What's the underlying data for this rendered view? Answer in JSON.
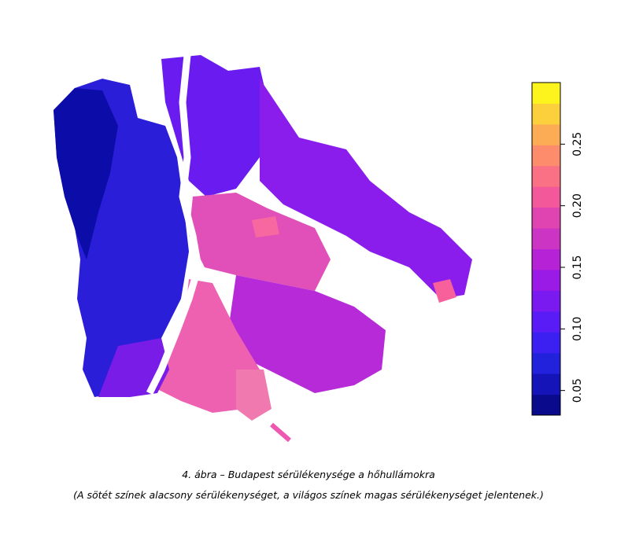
{
  "map": {
    "colorbar": {
      "lim": [
        0.03,
        0.3
      ],
      "ticks": [
        0.05,
        {
          "value": 0.1,
          "label": "0.10"
        },
        0.15,
        {
          "value": 0.2,
          "label": "0.20"
        },
        0.25
      ],
      "colors": [
        "#0a0a8c",
        "#1414b8",
        "#2222dc",
        "#3c20f2",
        "#5a1cf6",
        "#7a1af0",
        "#9a1ae6",
        "#b622d6",
        "#cc34c4",
        "#e044b0",
        "#f2589a",
        "#fa7084",
        "#fc8c6c",
        "#fcac54",
        "#fcd03c",
        "#fcf41c"
      ]
    }
  },
  "caption": {
    "title": "4. ábra – Budapest sérülékenysége a hőhullámokra",
    "note": "(A sötét színek alacsony sérülékenységet, a világos színek magas sérülékenységet jelentenek.)"
  }
}
